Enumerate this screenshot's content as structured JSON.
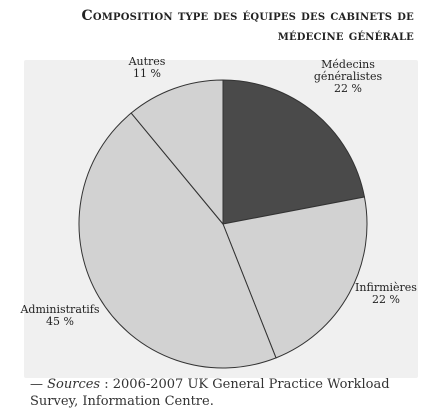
{
  "header": {
    "title_line1": "Composition type des équipes des cabinets de",
    "title_line2": "médecine générale"
  },
  "chart_data": {
    "type": "pie",
    "title": "Composition type des équipes des cabinets de médecine générale",
    "slices": [
      {
        "label_lines": [
          "Médecins",
          "généralistes"
        ],
        "value_text": "22 %",
        "value": 22,
        "color": "#4a4a4a"
      },
      {
        "label_lines": [
          "Infirmières"
        ],
        "value_text": "22 %",
        "value": 22,
        "color": "#d2d2d2"
      },
      {
        "label_lines": [
          "Administratifs"
        ],
        "value_text": "45 %",
        "value": 45,
        "color": "#d2d2d2"
      },
      {
        "label_lines": [
          "Autres"
        ],
        "value_text": "11 %",
        "value": 11,
        "color": "#d2d2d2"
      }
    ],
    "start": "12 o'clock",
    "direction": "clockwise"
  },
  "source": {
    "prefix": "— ",
    "label": "Sources",
    "text": " : 2006-2007 UK General Practice Workload Survey, Information Centre."
  }
}
